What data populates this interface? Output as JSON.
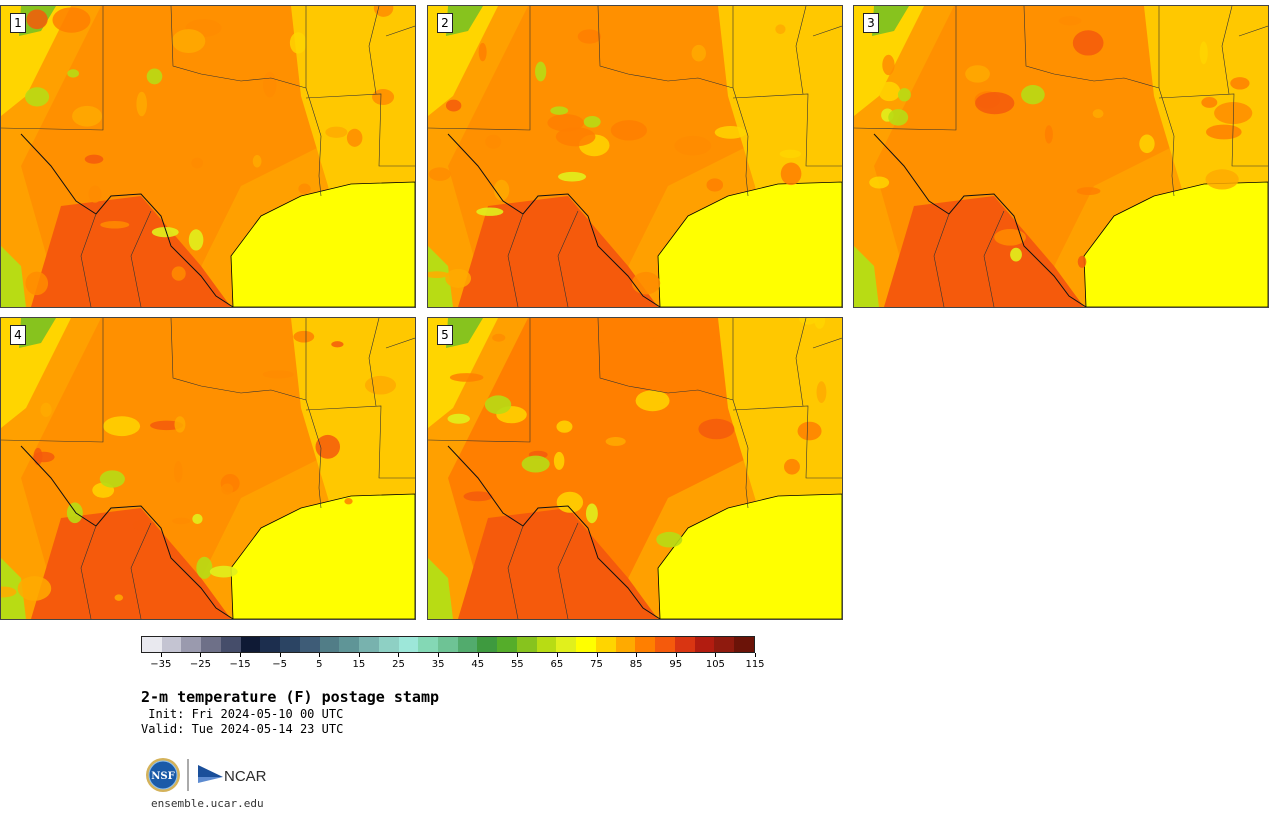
{
  "panels": [
    {
      "label": "1"
    },
    {
      "label": "2"
    },
    {
      "label": "3"
    },
    {
      "label": "4"
    },
    {
      "label": "5"
    }
  ],
  "colorbar": {
    "colors": [
      "#e9e9ef",
      "#c4c4d2",
      "#9a9aae",
      "#6e7088",
      "#454d6a",
      "#0f1a35",
      "#1c2e4e",
      "#2b4463",
      "#3e5c77",
      "#517d87",
      "#5f9597",
      "#78b2ae",
      "#8ed0c4",
      "#9de7d9",
      "#84d8b5",
      "#6ec395",
      "#52ab6d",
      "#3e9a3f",
      "#55ad2a",
      "#87c31e",
      "#b8dc14",
      "#e1f01c",
      "#ffff00",
      "#ffd500",
      "#ffaa00",
      "#ff7f00",
      "#f55a0c",
      "#d93512",
      "#b21c10",
      "#8f1a0e",
      "#6b1308"
    ],
    "tick_labels": [
      "−35",
      "−25",
      "−15",
      "−5",
      "5",
      "15",
      "25",
      "35",
      "45",
      "55",
      "65",
      "75",
      "85",
      "95",
      "105",
      "115"
    ]
  },
  "title": "2-m temperature (F) postage stamp",
  "init_text": " Init: Fri 2024-05-10 00 UTC",
  "valid_text": "Valid: Tue 2024-05-14 23 UTC",
  "logos": {
    "nsf": "NSF",
    "ncar": "NCAR"
  },
  "website": "ensemble.ucar.edu"
}
